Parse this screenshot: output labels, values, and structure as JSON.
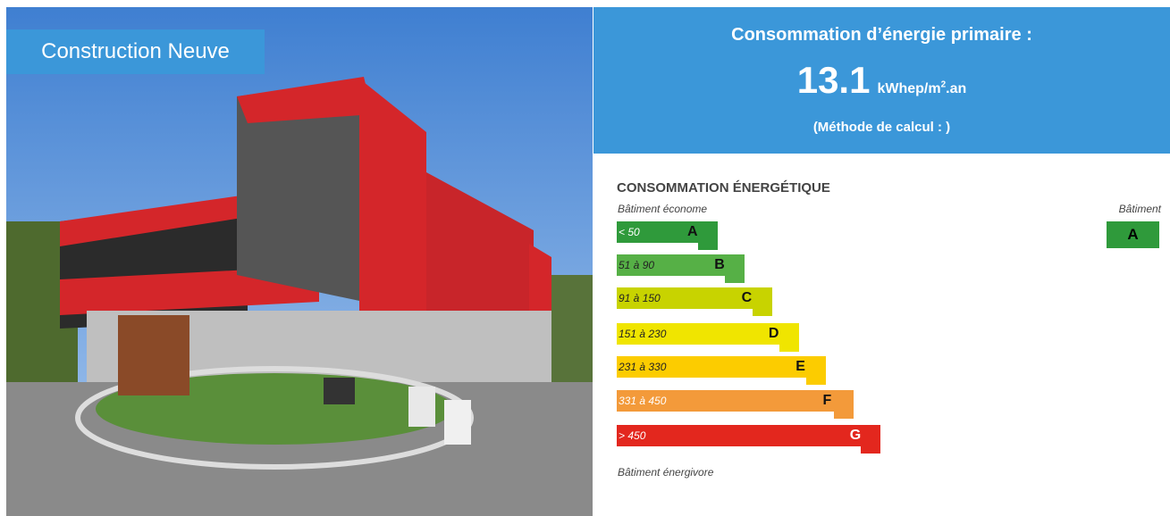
{
  "photo_label": "Construction Neuve",
  "header": {
    "title": "Consommation d’énergie primaire :",
    "value": 13.1,
    "unit": "kWhep/m",
    "unit_exponent": "2",
    "unit_suffix": ".an",
    "method": "(Méthode de calcul : )"
  },
  "label": {
    "title": "CONSOMMATION ÉNERGÉTIQUE",
    "top_note": "Bâtiment économe",
    "bottom_note": "Bâtiment énergivore",
    "current_heading": "Bâtiment",
    "current_class": "A",
    "current_color": "#2f9a3b",
    "classes": [
      {
        "range": "< 50",
        "letter": "A",
        "color": "#2f9a3b",
        "text_color": "#ffffff"
      },
      {
        "range": "51 à 90",
        "letter": "B",
        "color": "#56b046",
        "text_color": "#222222"
      },
      {
        "range": "91 à 150",
        "letter": "C",
        "color": "#c8d300",
        "text_color": "#222222"
      },
      {
        "range": "151 à 230",
        "letter": "D",
        "color": "#f0e500",
        "text_color": "#222222"
      },
      {
        "range": "231 à 330",
        "letter": "E",
        "color": "#fccc00",
        "text_color": "#222222"
      },
      {
        "range": "331 à 450",
        "letter": "F",
        "color": "#f39a3a",
        "text_color": "#ffffff"
      },
      {
        "range": "> 450",
        "letter": "G",
        "color": "#e3271e",
        "text_color": "#ffffff"
      }
    ]
  }
}
